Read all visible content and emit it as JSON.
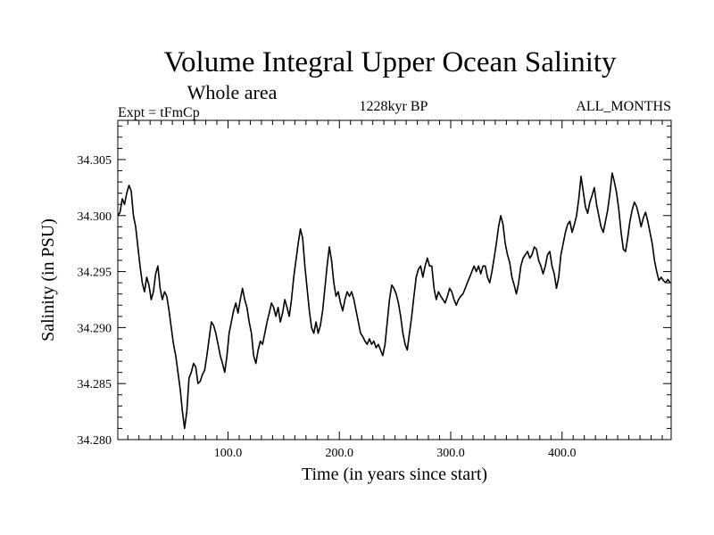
{
  "chart_data": {
    "type": "line",
    "title": "Volume Integral Upper Ocean Salinity",
    "subtitle": "Whole area",
    "experiment": "Expt = tFmCp",
    "period": "1228kyr BP",
    "months": "ALL_MONTHS",
    "xlabel": "Time (in years since start)",
    "ylabel": "Salinity (in PSU)",
    "xlim": [
      1,
      498
    ],
    "ylim": [
      34.28,
      34.3085
    ],
    "x_ticks": [
      100,
      200,
      300,
      400
    ],
    "x_tick_labels": [
      "100.0",
      "200.0",
      "300.0",
      "400.0"
    ],
    "y_ticks": [
      34.28,
      34.285,
      34.29,
      34.295,
      34.3,
      34.305
    ],
    "y_tick_labels": [
      "34.280",
      "34.285",
      "34.290",
      "34.295",
      "34.300",
      "34.305"
    ],
    "series": [
      {
        "name": "Salinity",
        "points": [
          [
            1,
            34.3
          ],
          [
            3,
            34.3003
          ],
          [
            5,
            34.3015
          ],
          [
            7,
            34.301
          ],
          [
            9,
            34.302
          ],
          [
            11,
            34.3027
          ],
          [
            13,
            34.3022
          ],
          [
            15,
            34.3
          ],
          [
            17,
            34.299
          ],
          [
            19,
            34.2972
          ],
          [
            21,
            34.2955
          ],
          [
            23,
            34.294
          ],
          [
            25,
            34.2932
          ],
          [
            27,
            34.2945
          ],
          [
            29,
            34.2938
          ],
          [
            31,
            34.2925
          ],
          [
            33,
            34.2932
          ],
          [
            35,
            34.2948
          ],
          [
            37,
            34.2955
          ],
          [
            39,
            34.2935
          ],
          [
            41,
            34.2925
          ],
          [
            43,
            34.2932
          ],
          [
            45,
            34.2928
          ],
          [
            47,
            34.2915
          ],
          [
            49,
            34.29
          ],
          [
            51,
            34.2885
          ],
          [
            53,
            34.2875
          ],
          [
            55,
            34.286
          ],
          [
            57,
            34.2845
          ],
          [
            59,
            34.2825
          ],
          [
            61,
            34.281
          ],
          [
            63,
            34.2825
          ],
          [
            65,
            34.2855
          ],
          [
            67,
            34.286
          ],
          [
            69,
            34.2868
          ],
          [
            71,
            34.2865
          ],
          [
            73,
            34.285
          ],
          [
            75,
            34.2852
          ],
          [
            77,
            34.2858
          ],
          [
            79,
            34.2862
          ],
          [
            81,
            34.2875
          ],
          [
            83,
            34.289
          ],
          [
            85,
            34.2905
          ],
          [
            87,
            34.2902
          ],
          [
            89,
            34.2895
          ],
          [
            91,
            34.2885
          ],
          [
            93,
            34.2875
          ],
          [
            95,
            34.2868
          ],
          [
            97,
            34.286
          ],
          [
            99,
            34.2875
          ],
          [
            101,
            34.2895
          ],
          [
            103,
            34.2905
          ],
          [
            105,
            34.2915
          ],
          [
            107,
            34.2922
          ],
          [
            109,
            34.2913
          ],
          [
            111,
            34.2925
          ],
          [
            113,
            34.2935
          ],
          [
            115,
            34.2925
          ],
          [
            117,
            34.2918
          ],
          [
            119,
            34.2905
          ],
          [
            121,
            34.2895
          ],
          [
            123,
            34.2875
          ],
          [
            125,
            34.2868
          ],
          [
            127,
            34.288
          ],
          [
            129,
            34.2888
          ],
          [
            131,
            34.2885
          ],
          [
            133,
            34.2895
          ],
          [
            135,
            34.2905
          ],
          [
            137,
            34.2913
          ],
          [
            139,
            34.2922
          ],
          [
            141,
            34.2918
          ],
          [
            143,
            34.291
          ],
          [
            145,
            34.2918
          ],
          [
            147,
            34.2905
          ],
          [
            149,
            34.2913
          ],
          [
            151,
            34.2925
          ],
          [
            153,
            34.2918
          ],
          [
            155,
            34.291
          ],
          [
            157,
            34.2925
          ],
          [
            159,
            34.2945
          ],
          [
            161,
            34.296
          ],
          [
            163,
            34.2975
          ],
          [
            165,
            34.2988
          ],
          [
            167,
            34.298
          ],
          [
            169,
            34.2955
          ],
          [
            171,
            34.2935
          ],
          [
            173,
            34.2915
          ],
          [
            175,
            34.29
          ],
          [
            177,
            34.2895
          ],
          [
            179,
            34.2905
          ],
          [
            181,
            34.2895
          ],
          [
            183,
            34.2902
          ],
          [
            185,
            34.2915
          ],
          [
            187,
            34.2935
          ],
          [
            189,
            34.2955
          ],
          [
            191,
            34.2972
          ],
          [
            193,
            34.296
          ],
          [
            195,
            34.294
          ],
          [
            197,
            34.2928
          ],
          [
            199,
            34.2932
          ],
          [
            201,
            34.2922
          ],
          [
            203,
            34.2915
          ],
          [
            205,
            34.2925
          ],
          [
            207,
            34.2932
          ],
          [
            209,
            34.2928
          ],
          [
            211,
            34.2932
          ],
          [
            213,
            34.2925
          ],
          [
            215,
            34.2915
          ],
          [
            217,
            34.2905
          ],
          [
            219,
            34.2895
          ],
          [
            221,
            34.2892
          ],
          [
            223,
            34.2888
          ],
          [
            225,
            34.2885
          ],
          [
            227,
            34.289
          ],
          [
            229,
            34.2885
          ],
          [
            231,
            34.2888
          ],
          [
            233,
            34.2882
          ],
          [
            235,
            34.2885
          ],
          [
            237,
            34.288
          ],
          [
            239,
            34.2875
          ],
          [
            241,
            34.2885
          ],
          [
            243,
            34.2905
          ],
          [
            245,
            34.2925
          ],
          [
            247,
            34.2938
          ],
          [
            249,
            34.2935
          ],
          [
            251,
            34.293
          ],
          [
            253,
            34.2922
          ],
          [
            255,
            34.291
          ],
          [
            257,
            34.2895
          ],
          [
            259,
            34.2885
          ],
          [
            261,
            34.288
          ],
          [
            263,
            34.2895
          ],
          [
            265,
            34.291
          ],
          [
            267,
            34.2928
          ],
          [
            269,
            34.2945
          ],
          [
            271,
            34.2952
          ],
          [
            273,
            34.2955
          ],
          [
            275,
            34.2945
          ],
          [
            277,
            34.2955
          ],
          [
            279,
            34.2962
          ],
          [
            281,
            34.2955
          ],
          [
            283,
            34.2955
          ],
          [
            285,
            34.2935
          ],
          [
            287,
            34.2925
          ],
          [
            289,
            34.2932
          ],
          [
            291,
            34.2928
          ],
          [
            293,
            34.2925
          ],
          [
            295,
            34.2922
          ],
          [
            297,
            34.2928
          ],
          [
            299,
            34.2935
          ],
          [
            301,
            34.2932
          ],
          [
            303,
            34.2925
          ],
          [
            305,
            34.292
          ],
          [
            307,
            34.2925
          ],
          [
            309,
            34.2928
          ],
          [
            311,
            34.293
          ],
          [
            313,
            34.2935
          ],
          [
            315,
            34.294
          ],
          [
            317,
            34.2945
          ],
          [
            319,
            34.295
          ],
          [
            321,
            34.2955
          ],
          [
            323,
            34.295
          ],
          [
            325,
            34.2955
          ],
          [
            327,
            34.2948
          ],
          [
            329,
            34.2955
          ],
          [
            331,
            34.2955
          ],
          [
            333,
            34.2945
          ],
          [
            335,
            34.294
          ],
          [
            337,
            34.295
          ],
          [
            339,
            34.2962
          ],
          [
            341,
            34.2975
          ],
          [
            343,
            34.299
          ],
          [
            345,
            34.3
          ],
          [
            347,
            34.2992
          ],
          [
            349,
            34.2975
          ],
          [
            351,
            34.2965
          ],
          [
            353,
            34.2958
          ],
          [
            355,
            34.2945
          ],
          [
            357,
            34.2938
          ],
          [
            359,
            34.293
          ],
          [
            361,
            34.294
          ],
          [
            363,
            34.2955
          ],
          [
            365,
            34.2962
          ],
          [
            367,
            34.2965
          ],
          [
            369,
            34.2968
          ],
          [
            371,
            34.2962
          ],
          [
            373,
            34.2965
          ],
          [
            375,
            34.2972
          ],
          [
            377,
            34.297
          ],
          [
            379,
            34.296
          ],
          [
            381,
            34.2955
          ],
          [
            383,
            34.2948
          ],
          [
            385,
            34.2955
          ],
          [
            387,
            34.2965
          ],
          [
            389,
            34.2968
          ],
          [
            391,
            34.2955
          ],
          [
            393,
            34.2948
          ],
          [
            395,
            34.2935
          ],
          [
            397,
            34.2945
          ],
          [
            399,
            34.2965
          ],
          [
            401,
            34.2975
          ],
          [
            403,
            34.2985
          ],
          [
            405,
            34.2992
          ],
          [
            407,
            34.2995
          ],
          [
            409,
            34.2985
          ],
          [
            411,
            34.2992
          ],
          [
            413,
            34.3
          ],
          [
            415,
            34.3015
          ],
          [
            417,
            34.3035
          ],
          [
            419,
            34.3022
          ],
          [
            421,
            34.3008
          ],
          [
            423,
            34.3002
          ],
          [
            425,
            34.3012
          ],
          [
            427,
            34.3018
          ],
          [
            429,
            34.3025
          ],
          [
            431,
            34.301
          ],
          [
            433,
            34.3
          ],
          [
            435,
            34.299
          ],
          [
            437,
            34.2985
          ],
          [
            439,
            34.2995
          ],
          [
            441,
            34.3005
          ],
          [
            443,
            34.302
          ],
          [
            445,
            34.3038
          ],
          [
            447,
            34.303
          ],
          [
            449,
            34.302
          ],
          [
            451,
            34.3005
          ],
          [
            453,
            34.2985
          ],
          [
            455,
            34.297
          ],
          [
            457,
            34.2968
          ],
          [
            459,
            34.298
          ],
          [
            461,
            34.2995
          ],
          [
            463,
            34.3005
          ],
          [
            465,
            34.3012
          ],
          [
            467,
            34.3008
          ],
          [
            469,
            34.3
          ],
          [
            471,
            34.299
          ],
          [
            473,
            34.2998
          ],
          [
            475,
            34.3003
          ],
          [
            477,
            34.2995
          ],
          [
            479,
            34.2985
          ],
          [
            481,
            34.2975
          ],
          [
            483,
            34.296
          ],
          [
            485,
            34.295
          ],
          [
            487,
            34.2942
          ],
          [
            489,
            34.2945
          ],
          [
            491,
            34.2942
          ],
          [
            493,
            34.294
          ],
          [
            495,
            34.2943
          ],
          [
            497,
            34.294
          ]
        ]
      }
    ]
  }
}
